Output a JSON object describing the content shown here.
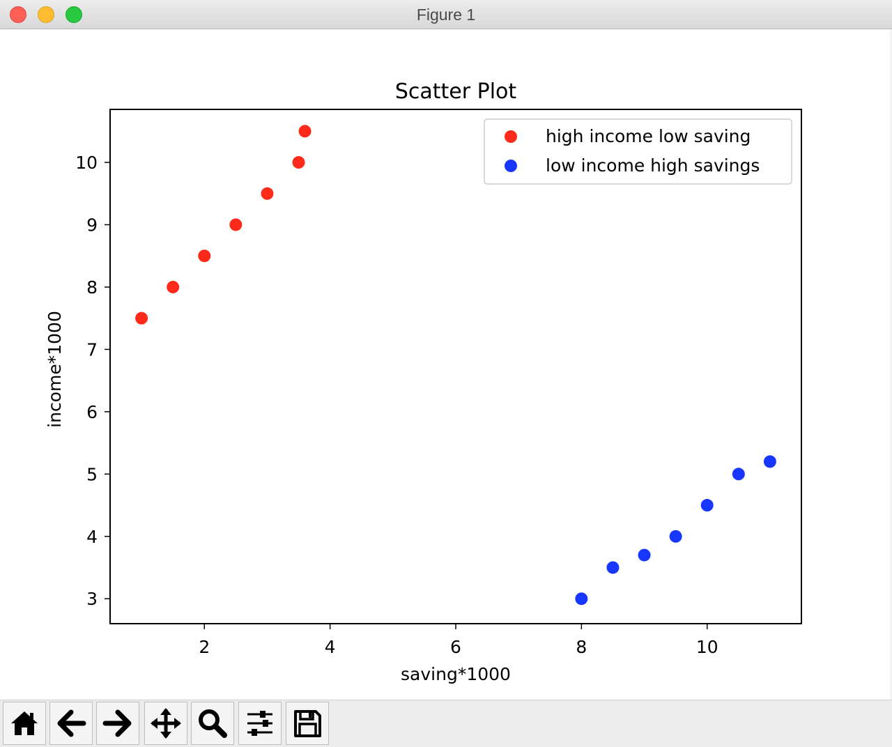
{
  "window": {
    "title": "Figure 1"
  },
  "toolbar": {
    "buttons": [
      {
        "name": "home-button",
        "icon": "home-icon"
      },
      {
        "name": "back-button",
        "icon": "arrow-left-icon"
      },
      {
        "name": "forward-button",
        "icon": "arrow-right-icon"
      },
      {
        "name": "pan-button",
        "icon": "move-icon"
      },
      {
        "name": "zoom-button",
        "icon": "magnifier-icon"
      },
      {
        "name": "configure-subplots-button",
        "icon": "sliders-icon"
      },
      {
        "name": "save-button",
        "icon": "floppy-disk-icon"
      }
    ]
  },
  "chart_data": {
    "type": "scatter",
    "title": "Scatter Plot",
    "xlabel": "saving*1000",
    "ylabel": "income*1000",
    "xlim": [
      0.5,
      11.5
    ],
    "ylim": [
      2.6,
      10.85
    ],
    "xticks": [
      2,
      4,
      6,
      8,
      10
    ],
    "yticks": [
      3,
      4,
      5,
      6,
      7,
      8,
      9,
      10
    ],
    "grid": false,
    "legend_position": "top-right",
    "series": [
      {
        "name": "high income low saving",
        "color": "#ff2a1a",
        "x": [
          1,
          1.5,
          2,
          2.5,
          3,
          3.5,
          3.6
        ],
        "y": [
          7.5,
          8,
          8.5,
          9,
          9.5,
          10,
          10.5
        ]
      },
      {
        "name": "low income high savings",
        "color": "#1736ff",
        "x": [
          8,
          8.5,
          9,
          9.5,
          10,
          10.5,
          11
        ],
        "y": [
          3,
          3.5,
          3.7,
          4,
          4.5,
          5,
          5.2
        ]
      }
    ]
  }
}
